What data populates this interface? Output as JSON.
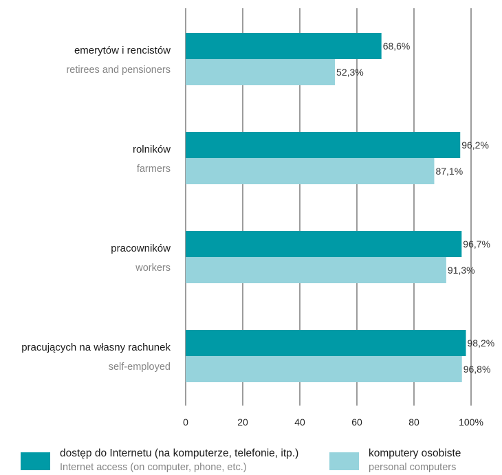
{
  "chart_data": {
    "type": "bar",
    "orientation": "horizontal",
    "categories": [
      {
        "label": "emerytów i rencistów",
        "sublabel": "retirees and pensioners"
      },
      {
        "label": "rolników",
        "sublabel": "farmers"
      },
      {
        "label": "pracowników",
        "sublabel": "workers"
      },
      {
        "label": "pracujących na własny rachunek",
        "sublabel": "self-employed"
      }
    ],
    "series": [
      {
        "name": "dostęp do Internetu (na komputerze, telefonie, itp.)",
        "name_en": "Internet access (on computer, phone, etc.)",
        "color": "#009aa6",
        "values": [
          68.6,
          96.2,
          96.7,
          98.2
        ],
        "value_labels": [
          "68,6%",
          "96,2%",
          "96,7%",
          "98,2%"
        ]
      },
      {
        "name": "komputery osobiste",
        "name_en": "personal computers",
        "color": "#96d3dc",
        "values": [
          52.3,
          87.1,
          91.3,
          96.8
        ],
        "value_labels": [
          "52,3%",
          "87,1%",
          "91,3%",
          "96,8%"
        ]
      }
    ],
    "x_ticks": [
      "0",
      "20",
      "40",
      "60",
      "80",
      "100%"
    ],
    "xlim": [
      0,
      100
    ],
    "grid": true,
    "legend_position": "bottom"
  }
}
